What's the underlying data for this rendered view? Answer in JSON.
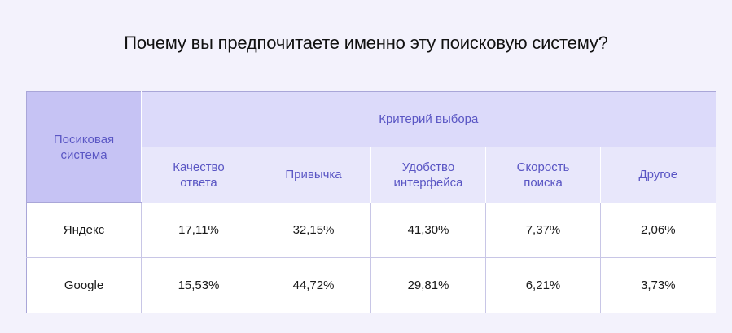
{
  "title": "Почему вы предпочитаете именно эту поисковую систему?",
  "table": {
    "corner_header": [
      "Посиковая",
      "система"
    ],
    "group_header": "Критерий выбора",
    "columns": [
      [
        "Качество",
        "ответа"
      ],
      [
        "Привычка"
      ],
      [
        "Удобство",
        "интерфейса"
      ],
      [
        "Скорость",
        "поиска"
      ],
      [
        "Другое"
      ]
    ],
    "rows": [
      {
        "name": "Яндекс",
        "values": [
          "17,11%",
          "32,15%",
          "41,30%",
          "7,37%",
          "2,06%"
        ]
      },
      {
        "name": "Google",
        "values": [
          "15,53%",
          "44,72%",
          "29,81%",
          "6,21%",
          "3,73%"
        ]
      }
    ]
  },
  "colors": {
    "background": "#f3f2fc",
    "header_dark": "#c6c3f4",
    "header_mid": "#dcdafa",
    "header_light": "#e8e7fb",
    "header_text": "#5a56c4"
  }
}
